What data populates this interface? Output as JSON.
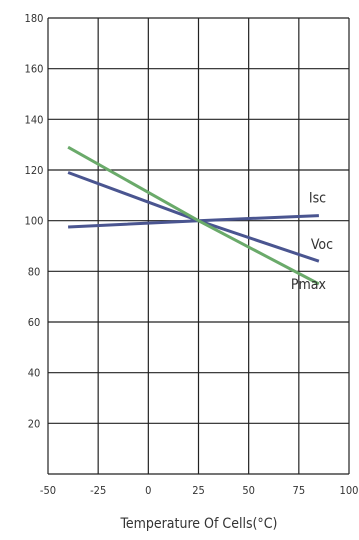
{
  "chart_data": {
    "type": "line",
    "title": "",
    "xlabel": "Temperature Of Cells(°C)",
    "ylabel": "",
    "xlim": [
      -50,
      100
    ],
    "ylim": [
      0,
      180
    ],
    "x_ticks": [
      -50,
      -25,
      0,
      25,
      50,
      75,
      100
    ],
    "x_tick_labels": [
      "-50",
      "-25",
      "0",
      "25",
      "50",
      "75",
      "100"
    ],
    "y_ticks": [
      20,
      40,
      60,
      80,
      100,
      120,
      140,
      160,
      180
    ],
    "y_tick_labels": [
      "20",
      "40",
      "60",
      "80",
      "100",
      "120",
      "140",
      "160",
      "180"
    ],
    "grid": true,
    "legend": "inline labels at right end of lines",
    "series": [
      {
        "name": "Isc",
        "color": "#4a5590",
        "x": [
          -40,
          25,
          85
        ],
        "y": [
          97.5,
          100,
          102
        ]
      },
      {
        "name": "Voc",
        "color": "#4a5590",
        "x": [
          -40,
          25,
          85
        ],
        "y": [
          119,
          100,
          84
        ]
      },
      {
        "name": "Pmax",
        "color": "#6aaa6a",
        "x": [
          -40,
          25,
          85
        ],
        "y": [
          129,
          100,
          75
        ]
      }
    ]
  }
}
